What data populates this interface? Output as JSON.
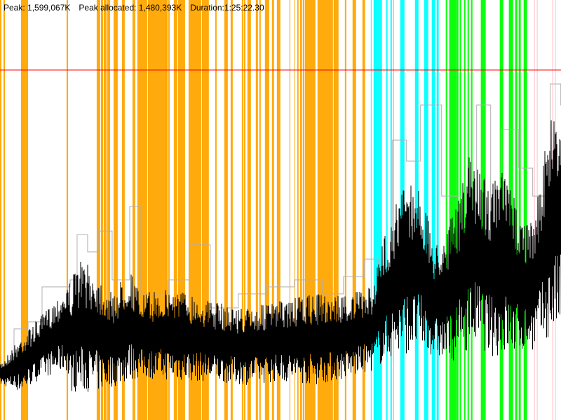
{
  "header": {
    "peak": "Peak: 1,599,067K",
    "peak_allocated": "Peak allocated: 1,480,393K",
    "duration": "Duration:1:25:22.30"
  },
  "chart_data": {
    "type": "line",
    "title": "",
    "xlabel": "",
    "ylabel": "",
    "x_unit": "seconds",
    "y_unit": "K",
    "xlim": [
      0,
      5122.3
    ],
    "ylim": [
      0,
      1918880
    ],
    "grid": false,
    "peak_line": {
      "value": 1599067,
      "color": "#ff0000"
    },
    "colors": {
      "orange": "#ffa500",
      "cyan": "#00ffff",
      "green": "#00ff00",
      "pink": "#ffc0cb",
      "peak_series": "#b0b0b0",
      "allocated_series": "#000000"
    },
    "bands": [
      {
        "color": "orange",
        "ranges": [
          [
            0,
            13
          ],
          [
            32,
            45
          ],
          [
            192,
            256
          ],
          [
            608,
            621
          ],
          [
            883,
            915
          ],
          [
            922,
            941
          ],
          [
            947,
            973
          ],
          [
            979,
            1005
          ],
          [
            1037,
            1075
          ],
          [
            1114,
            1139
          ],
          [
            1210,
            1235
          ],
          [
            1254,
            1344
          ],
          [
            1350,
            1498
          ],
          [
            1498,
            1524
          ],
          [
            1510,
            1530
          ],
          [
            1536,
            1549
          ],
          [
            1587,
            1619
          ],
          [
            1626,
            1690
          ],
          [
            1722,
            1837
          ],
          [
            1843,
            1907
          ],
          [
            1965,
            1978
          ],
          [
            2048,
            2080
          ],
          [
            2106,
            2125
          ],
          [
            2208,
            2221
          ],
          [
            2227,
            2240
          ],
          [
            2259,
            2291
          ],
          [
            2336,
            2355
          ],
          [
            2368,
            2381
          ],
          [
            2419,
            2458
          ],
          [
            2483,
            2502
          ],
          [
            2528,
            2560
          ],
          [
            2643,
            2650
          ],
          [
            2688,
            2694
          ],
          [
            2714,
            2726
          ],
          [
            2739,
            2758
          ],
          [
            2765,
            2778
          ],
          [
            2784,
            2880
          ],
          [
            2899,
            3040
          ],
          [
            3046,
            3091
          ],
          [
            3149,
            3162
          ],
          [
            3219,
            3251
          ],
          [
            3309,
            3334
          ]
        ]
      },
      {
        "color": "cyan",
        "ranges": [
          [
            3386,
            3392
          ],
          [
            3411,
            3488
          ],
          [
            3526,
            3539
          ],
          [
            3565,
            3578
          ],
          [
            3590,
            3597
          ],
          [
            3654,
            3693
          ],
          [
            3789,
            3821
          ],
          [
            3872,
            3910
          ],
          [
            3942,
            3974
          ],
          [
            3987,
            4006
          ]
        ]
      },
      {
        "color": "green",
        "ranges": [
          [
            4070,
            4083
          ],
          [
            4102,
            4173
          ],
          [
            4173,
            4186
          ],
          [
            4198,
            4211
          ],
          [
            4237,
            4250
          ],
          [
            4269,
            4282
          ],
          [
            4301,
            4314
          ],
          [
            4390,
            4435
          ],
          [
            4563,
            4595
          ],
          [
            4646,
            4685
          ],
          [
            4704,
            4723
          ],
          [
            4736,
            4755
          ],
          [
            4781,
            4813
          ]
        ]
      },
      {
        "color": "pink",
        "ranges": [
          [
            4877,
            4883
          ],
          [
            4902,
            4909
          ],
          [
            5043,
            5050
          ],
          [
            5069,
            5075
          ]
        ]
      }
    ],
    "series": [
      {
        "key": "peak",
        "x": [
          0,
          128,
          256,
          384,
          640,
          704,
          800,
          896,
          1024,
          1184,
          1280,
          1536,
          1728,
          1920,
          2176,
          2432,
          2688,
          2944,
          3136,
          3328,
          3456,
          3584,
          3712,
          3840,
          4032,
          4224,
          4352,
          4480,
          4576,
          4736,
          4864,
          5024,
          5120
        ],
        "y": [
          256000,
          416000,
          448000,
          608000,
          640000,
          847000,
          768000,
          863000,
          640000,
          975000,
          576000,
          640000,
          800000,
          512000,
          576000,
          608000,
          640000,
          576000,
          655000,
          735000,
          640000,
          1279000,
          1183000,
          1439000,
          1023000,
          895000,
          1439000,
          879000,
          1327000,
          1151000,
          1023000,
          1535000,
          1439000
        ]
      },
      {
        "key": "allocated_high",
        "x": [
          0,
          192,
          384,
          640,
          736,
          896,
          1024,
          1184,
          1280,
          1600,
          1920,
          2240,
          2560,
          2880,
          3200,
          3392,
          3520,
          3712,
          3840,
          3968,
          4160,
          4288,
          4480,
          4608,
          4736,
          4864,
          5056,
          5120
        ],
        "y": [
          256000,
          384000,
          480000,
          640000,
          736000,
          672000,
          576000,
          704000,
          576000,
          608000,
          544000,
          512000,
          544000,
          576000,
          576000,
          608000,
          863000,
          1119000,
          1055000,
          800000,
          959000,
          1215000,
          1087000,
          1151000,
          959000,
          895000,
          1471000,
          1407000
        ]
      },
      {
        "key": "allocated_low",
        "x": [
          0,
          192,
          384,
          608,
          640,
          896,
          1280,
          1664,
          1920,
          2240,
          2560,
          2880,
          3200,
          3392,
          3584,
          3840,
          4096,
          4352,
          4480,
          4608,
          4864,
          5056,
          5120
        ],
        "y": [
          160000,
          128000,
          192000,
          224000,
          128000,
          128000,
          192000,
          176000,
          176000,
          160000,
          176000,
          160000,
          192000,
          224000,
          288000,
          320000,
          256000,
          352000,
          288000,
          288000,
          320000,
          384000,
          416000
        ]
      }
    ]
  }
}
